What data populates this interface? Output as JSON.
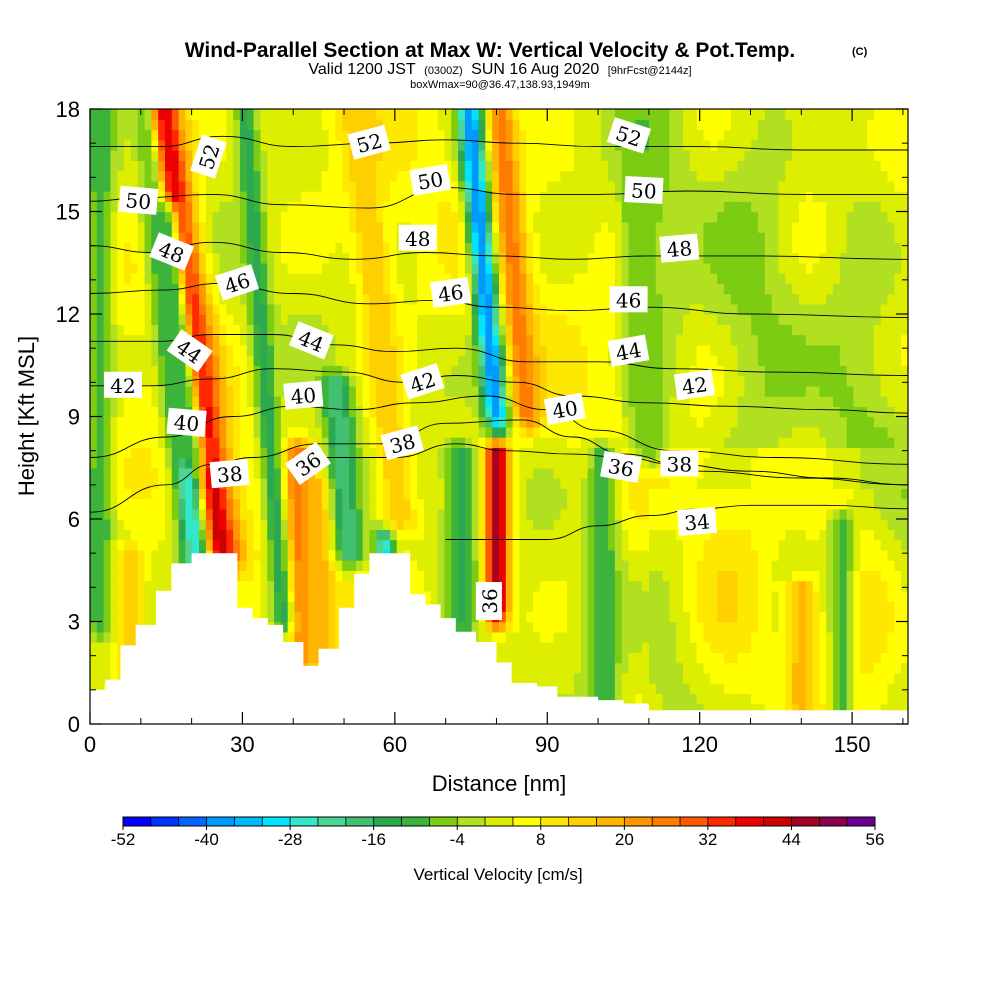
{
  "chart_data": {
    "type": "heatmap",
    "title": "Wind-Parallel Section at Max W: Vertical Velocity & Pot.Temp.",
    "title_mark": "(C)",
    "subtitle": {
      "valid_a": "Valid 1200 JST",
      "valid_b": "(0300Z)",
      "valid_c": "SUN 16 Aug 2020",
      "valid_d": "[9hrFcst@2144z]",
      "box": "boxWmax=90@36.47,138.93,1949m"
    },
    "xlabel": "Distance [nm]",
    "ylabel": "Height [Kft MSL]",
    "xlim": [
      0,
      161
    ],
    "ylim": [
      0,
      18
    ],
    "x_ticks": [
      0,
      30,
      60,
      90,
      120,
      150
    ],
    "y_ticks": [
      0,
      3,
      6,
      9,
      12,
      15,
      18
    ],
    "colorbar": {
      "label": "Vertical Velocity [cm/s]",
      "min": -52,
      "max": 56,
      "step": 4,
      "tick_labels": [
        -52,
        -40,
        -28,
        -16,
        -4,
        8,
        20,
        32,
        44,
        56
      ],
      "colors": [
        "#0000ff",
        "#0033ff",
        "#0066ff",
        "#0099ff",
        "#00bbff",
        "#00e5ff",
        "#33e8c8",
        "#4cd696",
        "#40c070",
        "#2ca850",
        "#3cb43c",
        "#7ccc14",
        "#b0e020",
        "#ddee00",
        "#ffff00",
        "#ffe800",
        "#ffd000",
        "#ffb400",
        "#ff9800",
        "#ff7c00",
        "#ff5800",
        "#ff2800",
        "#ee0000",
        "#cc0000",
        "#a80020",
        "#880050",
        "#6a0090"
      ]
    },
    "velocity_features": [
      {
        "x": 25,
        "w": 4.5,
        "top": 18,
        "bottom": 5,
        "lean": -0.9,
        "value": 48
      },
      {
        "x": 21,
        "w": 3.0,
        "top": 15,
        "bottom": 4.5,
        "lean": -0.7,
        "value": -28
      },
      {
        "x": 19,
        "w": 3.0,
        "top": 18,
        "bottom": 8,
        "lean": -0.9,
        "value": -8
      },
      {
        "x": 41,
        "w": 3.0,
        "top": 8,
        "bottom": 2.0,
        "lean": 0.0,
        "value": 28
      },
      {
        "x": 45,
        "w": 3.5,
        "top": 7,
        "bottom": 2.0,
        "lean": 0.0,
        "value": 20
      },
      {
        "x": 38,
        "w": 2.2,
        "top": 18,
        "bottom": 3,
        "lean": -0.5,
        "value": -14
      },
      {
        "x": 51,
        "w": 3.0,
        "top": 10,
        "bottom": 5,
        "lean": -0.5,
        "value": -20
      },
      {
        "x": 58,
        "w": 2.0,
        "top": 5.5,
        "bottom": 3.0,
        "lean": 0.0,
        "value": -30
      },
      {
        "x": 61,
        "w": 3.5,
        "top": 18,
        "bottom": 6,
        "lean": -0.7,
        "value": 16
      },
      {
        "x": 80,
        "w": 2.5,
        "top": 8,
        "bottom": 3.3,
        "lean": 0.0,
        "value": 46
      },
      {
        "x": 86,
        "w": 3.0,
        "top": 18,
        "bottom": 9,
        "lean": -0.6,
        "value": 26
      },
      {
        "x": 80,
        "w": 2.4,
        "top": 18,
        "bottom": 9,
        "lean": -0.6,
        "value": -40
      },
      {
        "x": 73,
        "w": 3.0,
        "top": 8,
        "bottom": 3,
        "lean": 0.0,
        "value": -14
      },
      {
        "x": 101,
        "w": 3.0,
        "top": 8,
        "bottom": 0.5,
        "lean": 0.0,
        "value": -12
      },
      {
        "x": 110,
        "w": 3.5,
        "top": 18,
        "bottom": 8,
        "lean": -0.3,
        "value": -8
      },
      {
        "x": 140,
        "w": 3.0,
        "top": 4,
        "bottom": 0.5,
        "lean": 0.0,
        "value": 18
      },
      {
        "x": 148,
        "w": 2.5,
        "top": 6,
        "bottom": 0.5,
        "lean": 0.0,
        "value": -10
      },
      {
        "x": 2,
        "w": 2.5,
        "top": 18,
        "bottom": 3,
        "lean": 0.0,
        "value": -12
      },
      {
        "x": 8,
        "w": 3.0,
        "top": 5,
        "bottom": 1,
        "lean": 0.0,
        "value": 16
      }
    ],
    "terrain": [
      [
        0,
        1.0
      ],
      [
        3,
        1.3
      ],
      [
        6,
        2.3
      ],
      [
        9,
        2.9
      ],
      [
        13,
        3.9
      ],
      [
        16,
        4.7
      ],
      [
        20,
        5.0
      ],
      [
        26,
        5.0
      ],
      [
        29,
        3.4
      ],
      [
        32,
        3.1
      ],
      [
        35,
        2.9
      ],
      [
        38,
        2.4
      ],
      [
        42,
        1.7
      ],
      [
        45,
        2.2
      ],
      [
        49,
        3.4
      ],
      [
        52,
        4.4
      ],
      [
        55,
        5.0
      ],
      [
        60,
        5.0
      ],
      [
        63,
        3.8
      ],
      [
        66,
        3.5
      ],
      [
        69,
        3.1
      ],
      [
        72,
        2.7
      ],
      [
        76,
        2.4
      ],
      [
        80,
        1.8
      ],
      [
        83,
        1.2
      ],
      [
        88,
        1.1
      ],
      [
        92,
        0.8
      ],
      [
        100,
        0.7
      ],
      [
        105,
        0.6
      ],
      [
        110,
        0.4
      ],
      [
        161,
        0.4
      ]
    ],
    "pot_temp_contours": [
      {
        "level": 34,
        "pts": [
          [
            70,
            5.4
          ],
          [
            90,
            5.4
          ],
          [
            100,
            5.8
          ],
          [
            110,
            6.1
          ],
          [
            120,
            6.3
          ],
          [
            130,
            6.4
          ],
          [
            145,
            6.4
          ],
          [
            161,
            6.3
          ]
        ]
      },
      {
        "level": 36,
        "pts": [
          [
            40,
            7.8
          ],
          [
            60,
            7.8
          ],
          [
            72,
            8.2
          ],
          [
            82,
            8.0
          ],
          [
            95,
            7.9
          ],
          [
            105,
            7.8
          ],
          [
            115,
            7.6
          ],
          [
            130,
            7.4
          ],
          [
            145,
            7.2
          ],
          [
            161,
            7.0
          ]
        ]
      },
      {
        "level": 38,
        "pts": [
          [
            0,
            6.2
          ],
          [
            15,
            7.0
          ],
          [
            24,
            7.6
          ],
          [
            32,
            7.8
          ],
          [
            45,
            8.2
          ],
          [
            58,
            8.2
          ],
          [
            70,
            8.8
          ],
          [
            85,
            8.9
          ],
          [
            95,
            8.4
          ],
          [
            105,
            7.9
          ],
          [
            120,
            7.4
          ],
          [
            140,
            7.2
          ],
          [
            161,
            7.0
          ]
        ]
      },
      {
        "level": 40,
        "pts": [
          [
            0,
            7.8
          ],
          [
            15,
            8.4
          ],
          [
            28,
            9.0
          ],
          [
            40,
            9.3
          ],
          [
            52,
            9.2
          ],
          [
            64,
            9.4
          ],
          [
            78,
            9.6
          ],
          [
            90,
            9.2
          ],
          [
            100,
            8.6
          ],
          [
            115,
            8.0
          ],
          [
            135,
            7.8
          ],
          [
            161,
            7.6
          ]
        ]
      },
      {
        "level": 42,
        "pts": [
          [
            0,
            9.9
          ],
          [
            12,
            9.9
          ],
          [
            24,
            10.1
          ],
          [
            36,
            10.4
          ],
          [
            50,
            10.3
          ],
          [
            62,
            10.0
          ],
          [
            72,
            10.2
          ],
          [
            84,
            10.0
          ],
          [
            95,
            9.6
          ],
          [
            110,
            9.4
          ],
          [
            125,
            9.3
          ],
          [
            145,
            9.2
          ],
          [
            161,
            9.1
          ]
        ]
      },
      {
        "level": 44,
        "pts": [
          [
            0,
            11.2
          ],
          [
            14,
            11.2
          ],
          [
            24,
            11.4
          ],
          [
            36,
            11.4
          ],
          [
            48,
            11.1
          ],
          [
            60,
            10.9
          ],
          [
            72,
            11.0
          ],
          [
            86,
            10.6
          ],
          [
            100,
            10.6
          ],
          [
            115,
            10.4
          ],
          [
            135,
            10.3
          ],
          [
            161,
            10.2
          ]
        ]
      },
      {
        "level": 46,
        "pts": [
          [
            0,
            12.6
          ],
          [
            14,
            12.7
          ],
          [
            26,
            12.9
          ],
          [
            40,
            12.6
          ],
          [
            55,
            12.3
          ],
          [
            68,
            12.4
          ],
          [
            80,
            12.2
          ],
          [
            95,
            12.1
          ],
          [
            110,
            12.2
          ],
          [
            130,
            12.0
          ],
          [
            161,
            11.9
          ]
        ]
      },
      {
        "level": 48,
        "pts": [
          [
            0,
            14.0
          ],
          [
            12,
            13.8
          ],
          [
            24,
            14.1
          ],
          [
            38,
            13.8
          ],
          [
            52,
            13.6
          ],
          [
            66,
            13.8
          ],
          [
            80,
            13.7
          ],
          [
            95,
            13.6
          ],
          [
            110,
            13.7
          ],
          [
            130,
            13.7
          ],
          [
            161,
            13.6
          ]
        ]
      },
      {
        "level": 50,
        "pts": [
          [
            0,
            15.3
          ],
          [
            10,
            15.4
          ],
          [
            24,
            15.5
          ],
          [
            38,
            15.2
          ],
          [
            55,
            15.1
          ],
          [
            70,
            15.7
          ],
          [
            84,
            15.5
          ],
          [
            100,
            15.5
          ],
          [
            118,
            15.6
          ],
          [
            140,
            15.5
          ],
          [
            161,
            15.5
          ]
        ]
      },
      {
        "level": 52,
        "pts": [
          [
            0,
            16.9
          ],
          [
            14,
            16.9
          ],
          [
            26,
            17.2
          ],
          [
            40,
            16.9
          ],
          [
            56,
            17.0
          ],
          [
            70,
            17.1
          ],
          [
            84,
            17.0
          ],
          [
            100,
            16.9
          ],
          [
            120,
            16.9
          ],
          [
            140,
            16.8
          ],
          [
            161,
            16.8
          ]
        ]
      }
    ],
    "contour_labels": [
      {
        "text": "52",
        "x": 23.5,
        "y": 16.6,
        "angle": -72
      },
      {
        "text": "52",
        "x": 55,
        "y": 17.0,
        "angle": -15
      },
      {
        "text": "52",
        "x": 106,
        "y": 17.2,
        "angle": 18
      },
      {
        "text": "50",
        "x": 9.5,
        "y": 15.3,
        "angle": 5
      },
      {
        "text": "50",
        "x": 67,
        "y": 15.9,
        "angle": -10
      },
      {
        "text": "50",
        "x": 109,
        "y": 15.6,
        "angle": 3
      },
      {
        "text": "48",
        "x": 16,
        "y": 13.8,
        "angle": 22
      },
      {
        "text": "48",
        "x": 64.5,
        "y": 14.2,
        "angle": 0
      },
      {
        "text": "48",
        "x": 116,
        "y": 13.9,
        "angle": -5
      },
      {
        "text": "46",
        "x": 29,
        "y": 12.9,
        "angle": -18
      },
      {
        "text": "46",
        "x": 71,
        "y": 12.6,
        "angle": -8
      },
      {
        "text": "46",
        "x": 106,
        "y": 12.4,
        "angle": 0
      },
      {
        "text": "44",
        "x": 19.5,
        "y": 10.9,
        "angle": 35
      },
      {
        "text": "44",
        "x": 43.5,
        "y": 11.2,
        "angle": 22
      },
      {
        "text": "44",
        "x": 106,
        "y": 10.9,
        "angle": -10
      },
      {
        "text": "42",
        "x": 6.5,
        "y": 9.9,
        "angle": 0
      },
      {
        "text": "42",
        "x": 65.5,
        "y": 10.0,
        "angle": -18
      },
      {
        "text": "42",
        "x": 119,
        "y": 9.9,
        "angle": -8
      },
      {
        "text": "40",
        "x": 19,
        "y": 8.8,
        "angle": 5
      },
      {
        "text": "40",
        "x": 42,
        "y": 9.6,
        "angle": -5
      },
      {
        "text": "40",
        "x": 93.5,
        "y": 9.2,
        "angle": -10
      },
      {
        "text": "38",
        "x": 27.5,
        "y": 7.3,
        "angle": -5
      },
      {
        "text": "38",
        "x": 61.5,
        "y": 8.2,
        "angle": -15
      },
      {
        "text": "38",
        "x": 116,
        "y": 7.6,
        "angle": 0
      },
      {
        "text": "36",
        "x": 43,
        "y": 7.6,
        "angle": -35
      },
      {
        "text": "36",
        "x": 104.5,
        "y": 7.5,
        "angle": 10
      },
      {
        "text": "36",
        "x": 78.7,
        "y": 3.6,
        "angle": -90
      },
      {
        "text": "34",
        "x": 119.5,
        "y": 5.9,
        "angle": -5
      }
    ]
  }
}
